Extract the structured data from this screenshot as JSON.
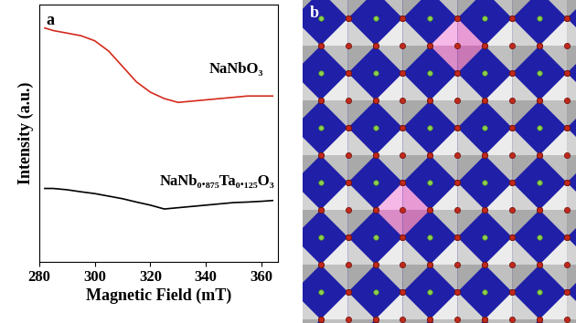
{
  "chart_data": {
    "type": "line",
    "panel_label": "a",
    "xlabel": "Magnetic Field (mT)",
    "ylabel": "Intensity (a.u.)",
    "x": [
      282,
      285,
      290,
      295,
      300,
      305,
      310,
      315,
      320,
      325,
      330,
      335,
      340,
      345,
      350,
      355,
      360,
      364
    ],
    "series": [
      {
        "name": "NaNbO₃",
        "color": "#d42a1c",
        "values": [
          9.1,
          9.0,
          8.9,
          8.8,
          8.6,
          8.2,
          7.6,
          7.0,
          6.6,
          6.35,
          6.2,
          6.25,
          6.3,
          6.35,
          6.4,
          6.45,
          6.45,
          6.45
        ]
      },
      {
        "name": "NaNb₀.₈₇₅Ta₀.₁₂₅O₃",
        "color": "#000000",
        "values": [
          2.85,
          2.85,
          2.8,
          2.72,
          2.65,
          2.55,
          2.45,
          2.32,
          2.2,
          2.05,
          2.1,
          2.15,
          2.2,
          2.25,
          2.3,
          2.32,
          2.35,
          2.38
        ]
      }
    ],
    "xlim": [
      280,
      366
    ],
    "xticks": [
      280,
      300,
      320,
      340,
      360
    ],
    "ylim": [
      0,
      10
    ],
    "yticks": [],
    "tick_labels": "x"
  },
  "diagram": {
    "panel_label": "b"
  }
}
